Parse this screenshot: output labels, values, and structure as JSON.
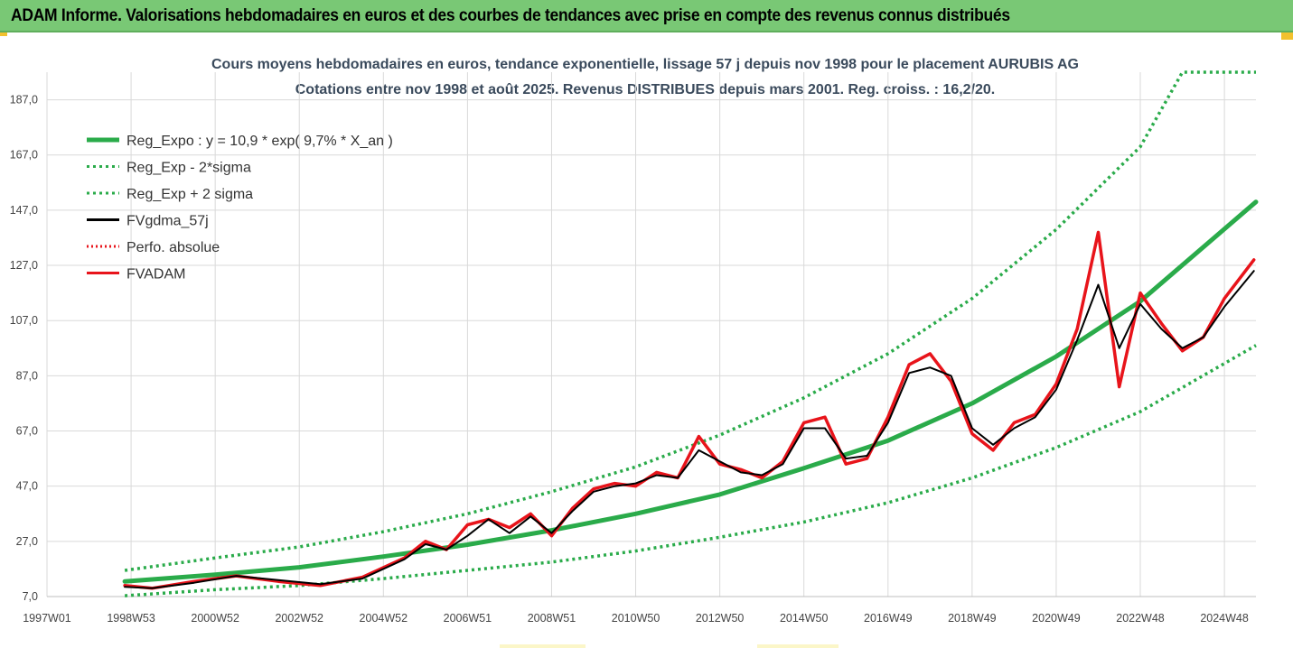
{
  "header": {
    "title": "ADAM Informe. Valorisations hebdomadaires en euros et des courbes de tendances avec prise en compte des revenus connus distribués"
  },
  "colors": {
    "banner": "#79c875",
    "trend": "#2aab4a",
    "fvgdma": "#000000",
    "fvadam": "#e8141b",
    "accent": "#f2c12e"
  },
  "chart_data": {
    "type": "line",
    "title": "Cours moyens hebdomadaires en euros, tendance exponentielle, lissage 57 j depuis nov 1998 pour le placement AURUBIS AG",
    "subtitle": "Cotations entre nov 1998 et août 2025. Revenus DISTRIBUES depuis mars 2001. Reg. croiss. : 16,2/20.",
    "xlabel": "",
    "ylabel": "",
    "x_range": [
      1997.0,
      2025.75
    ],
    "ylim": [
      7,
      197
    ],
    "y_ticks": [
      7.0,
      27.0,
      47.0,
      67.0,
      87.0,
      107.0,
      127.0,
      147.0,
      167.0,
      187.0
    ],
    "y_tick_labels": [
      "7,0",
      "27,0",
      "47,0",
      "67,0",
      "87,0",
      "107,0",
      "127,0",
      "147,0",
      "167,0",
      "187,0"
    ],
    "x_ticks": [
      {
        "label": "1997W01",
        "t": 1997.0
      },
      {
        "label": "1998W53",
        "t": 1999.0
      },
      {
        "label": "2000W52",
        "t": 2001.0
      },
      {
        "label": "2002W52",
        "t": 2003.0
      },
      {
        "label": "2004W52",
        "t": 2005.0
      },
      {
        "label": "2006W51",
        "t": 2007.0
      },
      {
        "label": "2008W51",
        "t": 2009.0
      },
      {
        "label": "2010W50",
        "t": 2011.0
      },
      {
        "label": "2012W50",
        "t": 2013.0
      },
      {
        "label": "2014W50",
        "t": 2015.0
      },
      {
        "label": "2016W49",
        "t": 2017.0
      },
      {
        "label": "2018W49",
        "t": 2019.0
      },
      {
        "label": "2020W49",
        "t": 2021.0
      },
      {
        "label": "2022W48",
        "t": 2023.0
      },
      {
        "label": "2024W48",
        "t": 2025.0
      }
    ],
    "legend": {
      "placement": "top-left",
      "items": [
        {
          "label": "Reg_Expo : y = 10,9 * exp( 9,7% *  X_an )",
          "series": "reg_expo"
        },
        {
          "label": "Reg_Exp - 2*sigma",
          "series": "reg_exp_minus"
        },
        {
          "label": "Reg_Exp + 2 sigma",
          "series": "reg_exp_plus"
        },
        {
          "label": "FVgdma_57j",
          "series": "fvgdma"
        },
        {
          "label": "Perfo. absolue",
          "series": "perfo"
        },
        {
          "label": "FVADAM",
          "series": "fvadam"
        }
      ]
    },
    "series": [
      {
        "name": "Reg_Expo : y = 10,9 * exp( 9,7% *  X_an )",
        "id": "reg_expo",
        "style": "solid",
        "color": "#2aab4a",
        "x": [
          1998.85,
          2001,
          2003,
          2005,
          2007,
          2009,
          2011,
          2013,
          2015,
          2017,
          2019,
          2021,
          2023,
          2025.75
        ],
        "values": [
          12.5,
          14.9,
          17.6,
          21.5,
          25.8,
          31.0,
          37.0,
          44.0,
          53.5,
          63.5,
          77.0,
          94.0,
          114.0,
          150.0
        ]
      },
      {
        "name": "Reg_Exp - 2*sigma",
        "id": "reg_exp_minus",
        "style": "dotted",
        "color": "#2aab4a",
        "x": [
          1998.85,
          2001,
          2003,
          2005,
          2007,
          2009,
          2011,
          2013,
          2015,
          2017,
          2019,
          2021,
          2023,
          2025.75
        ],
        "values": [
          7.3,
          9.5,
          11.0,
          13.5,
          16.5,
          19.5,
          23.5,
          28.5,
          34.0,
          41.0,
          50.0,
          61.0,
          74.0,
          98.0
        ]
      },
      {
        "name": "Reg_Exp + 2 sigma",
        "id": "reg_exp_plus",
        "style": "dotted",
        "color": "#2aab4a",
        "x": [
          1998.85,
          2001,
          2003,
          2005,
          2007,
          2009,
          2011,
          2013,
          2015,
          2017,
          2019,
          2021,
          2023,
          2024,
          2025.75
        ],
        "values": [
          16.5,
          21.0,
          25.0,
          30.5,
          37.0,
          45.0,
          54.0,
          65.5,
          79.0,
          95.0,
          115.0,
          140.0,
          170.0,
          197.0,
          197.0
        ]
      },
      {
        "name": "FVgdma_57j",
        "id": "fvgdma",
        "style": "solid",
        "color": "#000000",
        "x": [
          1998.85,
          1999.5,
          2000.5,
          2001.5,
          2002.5,
          2003.5,
          2004.5,
          2005.5,
          2006,
          2006.5,
          2007,
          2007.5,
          2008,
          2008.5,
          2009,
          2009.5,
          2010,
          2010.5,
          2011,
          2011.5,
          2012,
          2012.5,
          2013,
          2013.5,
          2014,
          2014.5,
          2015,
          2015.5,
          2016,
          2016.5,
          2017,
          2017.5,
          2018,
          2018.5,
          2019,
          2019.5,
          2020,
          2020.5,
          2021,
          2021.5,
          2022,
          2022.5,
          2023,
          2023.5,
          2024,
          2024.5,
          2025,
          2025.7
        ],
        "values": [
          10.5,
          10.0,
          12.0,
          14.5,
          13.0,
          11.5,
          13.5,
          20.5,
          26.0,
          24.0,
          29.0,
          35.0,
          30.0,
          36.0,
          30.0,
          38.0,
          45.0,
          47.0,
          48.0,
          51.0,
          50.0,
          60.0,
          56.0,
          52.0,
          51.0,
          55.0,
          68.0,
          68.0,
          57.0,
          58.0,
          70.0,
          88.0,
          90.0,
          87.0,
          68.0,
          62.0,
          68.0,
          72.0,
          82.0,
          100.0,
          120.0,
          97.0,
          113.0,
          104.0,
          97.0,
          101.0,
          112.0,
          125.0
        ]
      },
      {
        "name": "Perfo. absolue",
        "id": "perfo",
        "style": "dotted",
        "color": "#e8141b",
        "x": [
          1998.85,
          1999.5,
          2000.5,
          2001.5,
          2002.5,
          2003.5,
          2004.5,
          2005.5,
          2006,
          2006.5,
          2007,
          2007.5,
          2008,
          2008.5,
          2009,
          2009.5,
          2010,
          2010.5,
          2011,
          2011.5,
          2012,
          2012.5,
          2013,
          2013.5,
          2014,
          2014.5,
          2015,
          2015.5,
          2016,
          2016.5,
          2017,
          2017.5,
          2018,
          2018.5,
          2019,
          2019.5,
          2020,
          2020.5,
          2021,
          2021.5,
          2022,
          2022.5,
          2023,
          2023.5,
          2024,
          2024.5,
          2025,
          2025.7
        ],
        "values": [
          11.0,
          10.0,
          12.5,
          14.5,
          12.5,
          11.0,
          14.0,
          21.0,
          27.0,
          24.0,
          33.0,
          35.0,
          32.0,
          37.0,
          29.0,
          39.0,
          46.0,
          48.0,
          47.0,
          52.0,
          50.0,
          65.0,
          55.0,
          53.0,
          50.0,
          56.0,
          70.0,
          72.0,
          55.0,
          57.0,
          72.0,
          91.0,
          95.0,
          85.0,
          66.0,
          60.0,
          70.0,
          73.0,
          84.0,
          104.0,
          139.0,
          83.0,
          117.0,
          106.0,
          96.0,
          101.0,
          115.0,
          129.0
        ]
      },
      {
        "name": "FVADAM",
        "id": "fvadam",
        "style": "solid",
        "color": "#e8141b",
        "x": [
          1998.85,
          1999.5,
          2000.5,
          2001.5,
          2002.5,
          2003.5,
          2004.5,
          2005.5,
          2006,
          2006.5,
          2007,
          2007.5,
          2008,
          2008.5,
          2009,
          2009.5,
          2010,
          2010.5,
          2011,
          2011.5,
          2012,
          2012.5,
          2013,
          2013.5,
          2014,
          2014.5,
          2015,
          2015.5,
          2016,
          2016.5,
          2017,
          2017.5,
          2018,
          2018.5,
          2019,
          2019.5,
          2020,
          2020.5,
          2021,
          2021.5,
          2022,
          2022.5,
          2023,
          2023.5,
          2024,
          2024.5,
          2025,
          2025.7
        ],
        "values": [
          11.0,
          10.0,
          12.5,
          14.5,
          12.5,
          11.0,
          14.0,
          21.0,
          27.0,
          24.0,
          33.0,
          35.0,
          32.0,
          37.0,
          29.0,
          39.0,
          46.0,
          48.0,
          47.0,
          52.0,
          50.0,
          65.0,
          55.0,
          53.0,
          50.0,
          56.0,
          70.0,
          72.0,
          55.0,
          57.0,
          72.0,
          91.0,
          95.0,
          85.0,
          66.0,
          60.0,
          70.0,
          73.0,
          84.0,
          104.0,
          139.0,
          83.0,
          117.0,
          106.0,
          96.0,
          101.0,
          115.0,
          129.0
        ]
      }
    ]
  }
}
